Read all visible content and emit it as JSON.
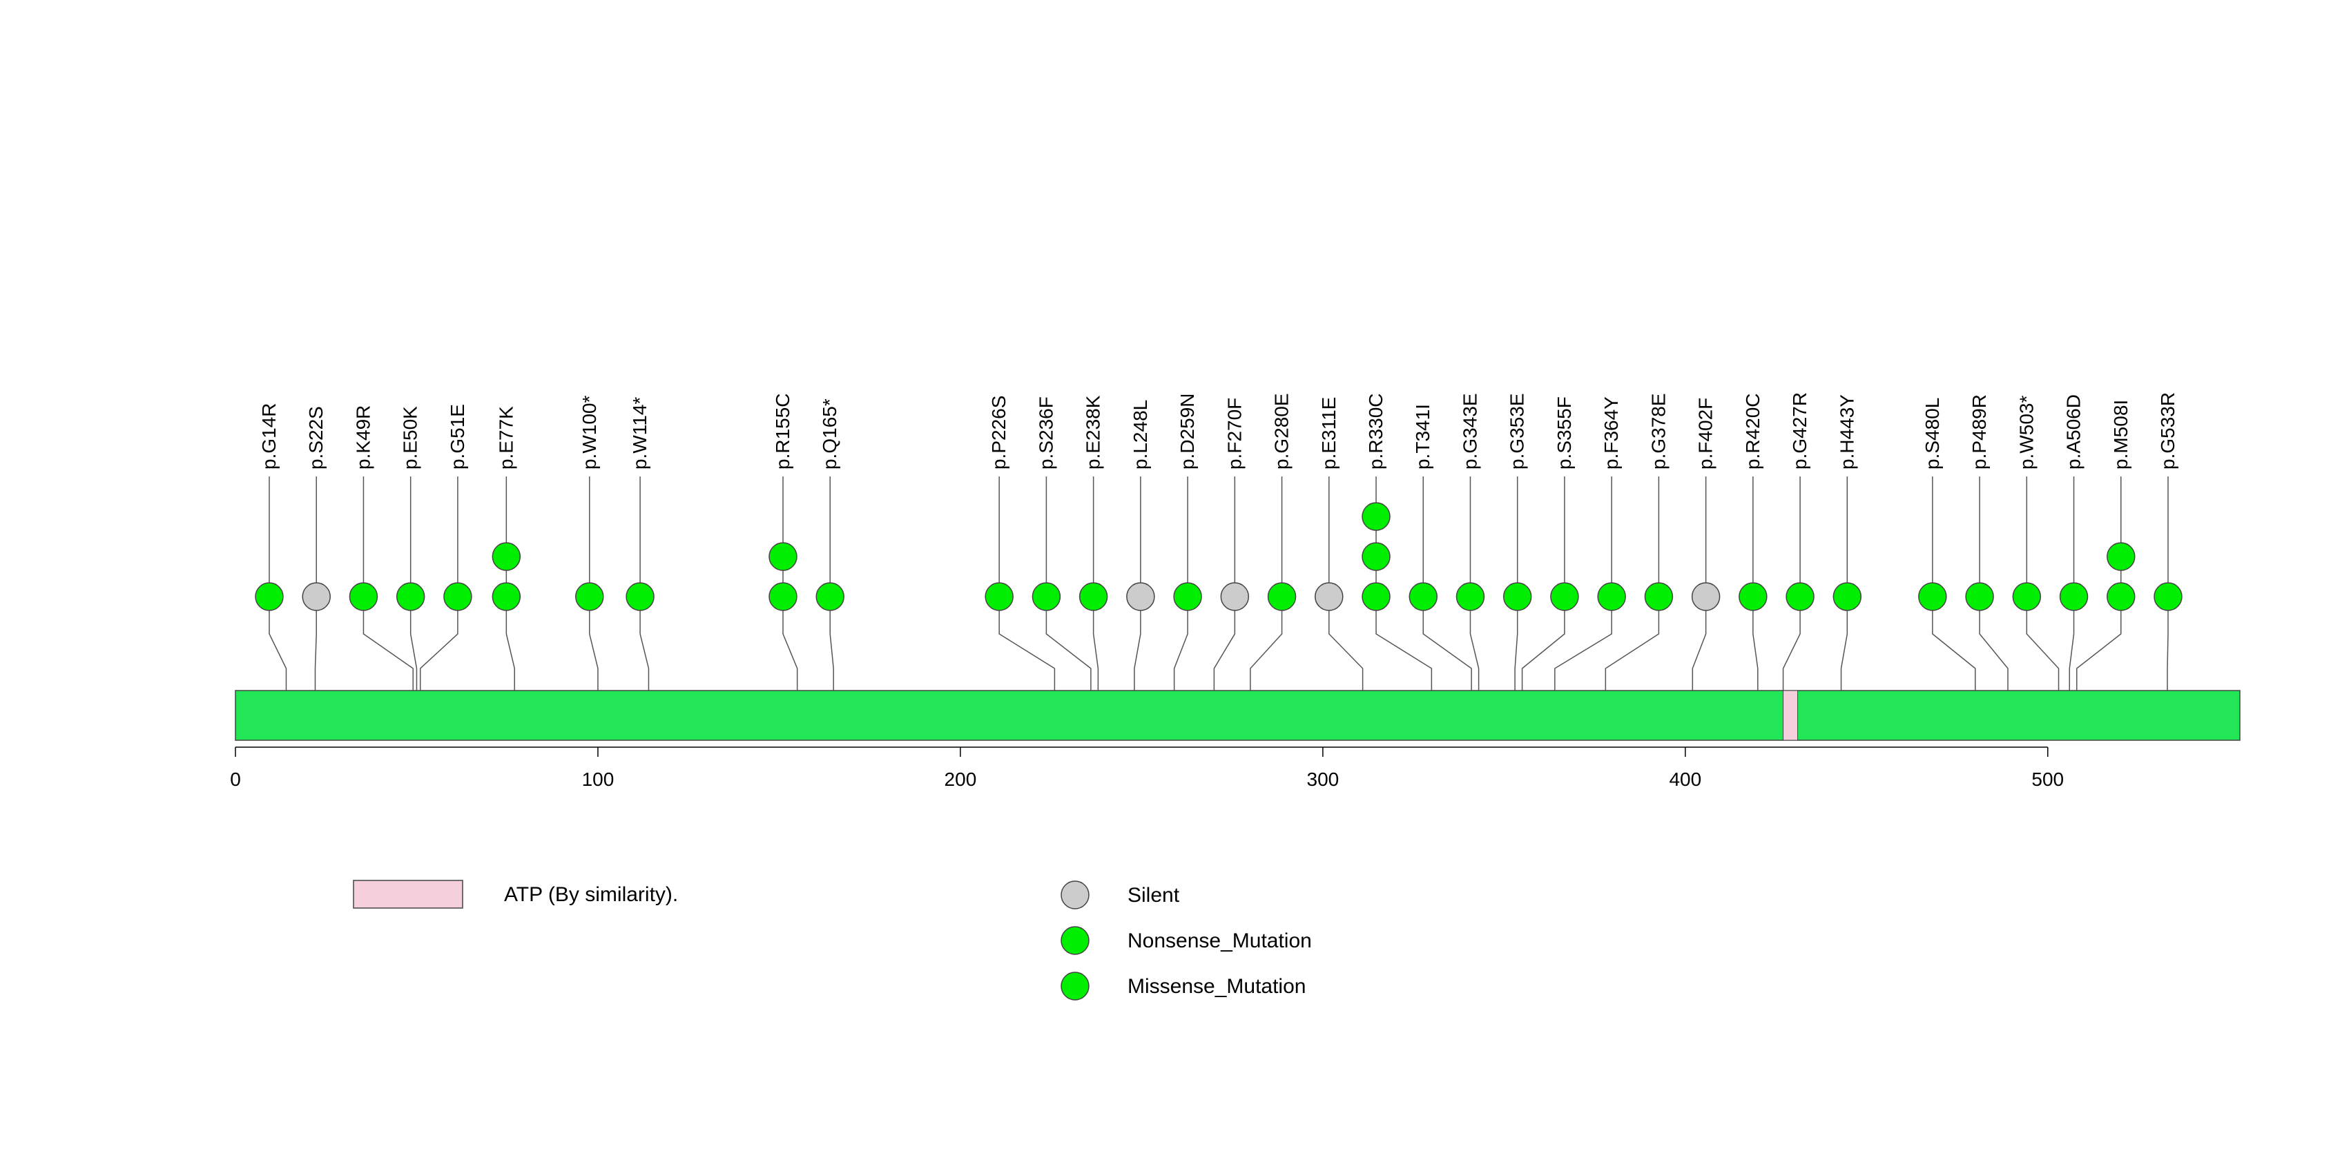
{
  "chart_data": {
    "type": "lollipop",
    "protein_length": 553,
    "axis": {
      "xlim": [
        0,
        553
      ],
      "ticks": [
        0,
        100,
        200,
        300,
        400,
        500
      ]
    },
    "domains": [
      {
        "name": "ATP (By similarity).",
        "start": 427,
        "end": 430
      }
    ],
    "mutations": [
      {
        "label": "p.G14R",
        "pos": 14,
        "count": 1,
        "type": "Missense_Mutation"
      },
      {
        "label": "p.S22S",
        "pos": 22,
        "count": 1,
        "type": "Silent"
      },
      {
        "label": "p.K49R",
        "pos": 49,
        "count": 1,
        "type": "Missense_Mutation"
      },
      {
        "label": "p.E50K",
        "pos": 50,
        "count": 1,
        "type": "Missense_Mutation"
      },
      {
        "label": "p.G51E",
        "pos": 51,
        "count": 1,
        "type": "Missense_Mutation"
      },
      {
        "label": "p.E77K",
        "pos": 77,
        "count": 2,
        "type": "Missense_Mutation"
      },
      {
        "label": "p.W100*",
        "pos": 100,
        "count": 1,
        "type": "Nonsense_Mutation"
      },
      {
        "label": "p.W114*",
        "pos": 114,
        "count": 1,
        "type": "Nonsense_Mutation"
      },
      {
        "label": "p.R155C",
        "pos": 155,
        "count": 2,
        "type": "Missense_Mutation"
      },
      {
        "label": "p.Q165*",
        "pos": 165,
        "count": 1,
        "type": "Nonsense_Mutation"
      },
      {
        "label": "p.P226S",
        "pos": 226,
        "count": 1,
        "type": "Missense_Mutation"
      },
      {
        "label": "p.S236F",
        "pos": 236,
        "count": 1,
        "type": "Missense_Mutation"
      },
      {
        "label": "p.E238K",
        "pos": 238,
        "count": 1,
        "type": "Missense_Mutation"
      },
      {
        "label": "p.L248L",
        "pos": 248,
        "count": 1,
        "type": "Silent"
      },
      {
        "label": "p.D259N",
        "pos": 259,
        "count": 1,
        "type": "Missense_Mutation"
      },
      {
        "label": "p.F270F",
        "pos": 270,
        "count": 1,
        "type": "Silent"
      },
      {
        "label": "p.G280E",
        "pos": 280,
        "count": 1,
        "type": "Missense_Mutation"
      },
      {
        "label": "p.E311E",
        "pos": 311,
        "count": 1,
        "type": "Silent"
      },
      {
        "label": "p.R330C",
        "pos": 330,
        "count": 3,
        "type": "Missense_Mutation"
      },
      {
        "label": "p.T341I",
        "pos": 341,
        "count": 1,
        "type": "Missense_Mutation"
      },
      {
        "label": "p.G343E",
        "pos": 343,
        "count": 1,
        "type": "Missense_Mutation"
      },
      {
        "label": "p.G353E",
        "pos": 353,
        "count": 1,
        "type": "Missense_Mutation"
      },
      {
        "label": "p.S355F",
        "pos": 355,
        "count": 1,
        "type": "Missense_Mutation"
      },
      {
        "label": "p.F364Y",
        "pos": 364,
        "count": 1,
        "type": "Missense_Mutation"
      },
      {
        "label": "p.G378E",
        "pos": 378,
        "count": 1,
        "type": "Missense_Mutation"
      },
      {
        "label": "p.F402F",
        "pos": 402,
        "count": 1,
        "type": "Silent"
      },
      {
        "label": "p.R420C",
        "pos": 420,
        "count": 1,
        "type": "Missense_Mutation"
      },
      {
        "label": "p.G427R",
        "pos": 427,
        "count": 1,
        "type": "Missense_Mutation"
      },
      {
        "label": "p.H443Y",
        "pos": 443,
        "count": 1,
        "type": "Missense_Mutation"
      },
      {
        "label": "p.S480L",
        "pos": 480,
        "count": 1,
        "type": "Missense_Mutation"
      },
      {
        "label": "p.P489R",
        "pos": 489,
        "count": 1,
        "type": "Missense_Mutation"
      },
      {
        "label": "p.W503*",
        "pos": 503,
        "count": 1,
        "type": "Nonsense_Mutation"
      },
      {
        "label": "p.A506D",
        "pos": 506,
        "count": 1,
        "type": "Missense_Mutation"
      },
      {
        "label": "p.M508I",
        "pos": 508,
        "count": 2,
        "type": "Missense_Mutation"
      },
      {
        "label": "p.G533R",
        "pos": 533,
        "count": 1,
        "type": "Missense_Mutation"
      }
    ],
    "legend": {
      "domains": [
        {
          "label": "ATP (By similarity).",
          "color": "#f5d0dc"
        }
      ],
      "mutation_types": [
        {
          "label": "Silent",
          "color": "#cccccc"
        },
        {
          "label": "Nonsense_Mutation",
          "color": "#00ee00"
        },
        {
          "label": "Missense_Mutation",
          "color": "#00ee00"
        }
      ]
    },
    "colors": {
      "protein_bar": "#22e655",
      "domain": "#f5d0dc",
      "silent": "#cccccc",
      "nonsense": "#00ee00",
      "missense": "#00ee00",
      "outline": "#444444",
      "stem": "#555555"
    }
  }
}
